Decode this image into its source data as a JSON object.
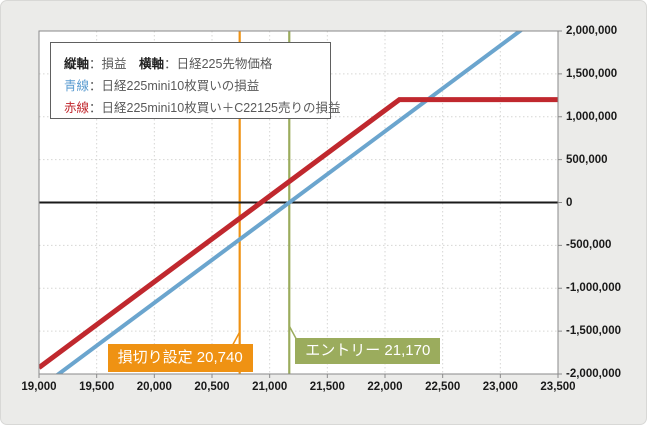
{
  "canvas": {
    "background": "#EBEBE9",
    "plot_background": "#FFFFFF",
    "plot_border_color": "#8A8A8A",
    "grid_color": "#D6D6D4"
  },
  "legend": {
    "rows": [
      {
        "segments": [
          {
            "text": "縦軸",
            "color": "#222222",
            "bold": true
          },
          {
            "text": "：損益",
            "color": "#595959",
            "bold": false
          },
          {
            "text": "　",
            "color": "#595959",
            "bold": false
          },
          {
            "text": "横軸",
            "color": "#222222",
            "bold": true
          },
          {
            "text": "：日経225先物価格",
            "color": "#595959",
            "bold": false
          }
        ]
      },
      {
        "segments": [
          {
            "text": "青線",
            "color": "#5A9BD0",
            "bold": false
          },
          {
            "text": "：日経225mini10枚買いの損益",
            "color": "#595959",
            "bold": false
          }
        ]
      },
      {
        "segments": [
          {
            "text": "赤線",
            "color": "#C0272D",
            "bold": false
          },
          {
            "text": "：日経225mini10枚買い＋C22125売りの損益",
            "color": "#595959",
            "bold": false
          }
        ]
      }
    ]
  },
  "chart_data": {
    "type": "line",
    "title": "",
    "x_axis": {
      "label": "日経225先物価格",
      "min": 19000,
      "max": 23500,
      "tick_step": 500,
      "ticks": [
        19000,
        19500,
        20000,
        20500,
        21000,
        21500,
        22000,
        22500,
        23000,
        23500
      ]
    },
    "y_axis": {
      "label": "損益",
      "min": -2000000,
      "max": 2000000,
      "tick_step": 500000,
      "ticks": [
        2000000,
        1500000,
        1000000,
        500000,
        0,
        -500000,
        -1000000,
        -1500000,
        -2000000
      ]
    },
    "grid": true,
    "zero_line": {
      "show": true,
      "color": "#1A1A1A",
      "width": 2
    },
    "series": [
      {
        "name": "日経225mini10枚買いの損益",
        "color": "#6BA5CE",
        "width": 4,
        "points": [
          [
            19000,
            -2170000
          ],
          [
            23500,
            2330000
          ]
        ]
      },
      {
        "name": "日経225mini10枚買い＋C22125売りの損益",
        "color": "#C0282E",
        "width": 5,
        "points": [
          [
            19000,
            -1925000
          ],
          [
            22125,
            1200000
          ],
          [
            23500,
            1200000
          ]
        ]
      }
    ],
    "markers": [
      {
        "label": "損切り設定 20,740",
        "x": 20740,
        "color": "#EF9213",
        "label_side": "left"
      },
      {
        "label": "エントリー 21,170",
        "x": 21170,
        "color": "#9BAC5D",
        "label_side": "right"
      }
    ]
  }
}
